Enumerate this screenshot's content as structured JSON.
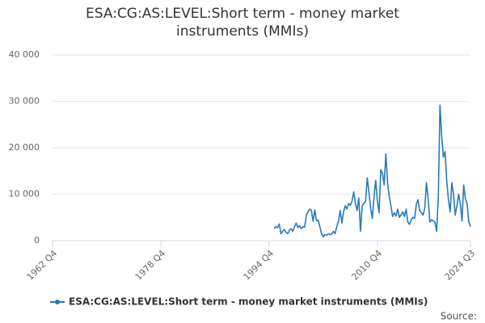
{
  "chart_data": {
    "type": "line",
    "title": "ESA:CG:AS:LEVEL:Short term - money market instruments (MMIs)",
    "source": "Source:",
    "x": [
      1995.5,
      1995.75,
      1996,
      1996.25,
      1996.5,
      1996.75,
      1997,
      1997.25,
      1997.5,
      1997.75,
      1998,
      1998.25,
      1998.5,
      1998.75,
      1999,
      1999.25,
      1999.5,
      1999.75,
      2000,
      2000.25,
      2000.5,
      2000.75,
      2001,
      2001.25,
      2001.5,
      2001.75,
      2002,
      2002.25,
      2002.5,
      2002.75,
      2003,
      2003.25,
      2003.5,
      2003.75,
      2004,
      2004.25,
      2004.5,
      2004.75,
      2005,
      2005.25,
      2005.5,
      2005.75,
      2006,
      2006.25,
      2006.5,
      2006.75,
      2007,
      2007.25,
      2007.5,
      2007.75,
      2008,
      2008.25,
      2008.5,
      2008.75,
      2009,
      2009.25,
      2009.5,
      2009.75,
      2010,
      2010.25,
      2010.5,
      2010.75,
      2011,
      2011.25,
      2011.5,
      2011.75,
      2012,
      2012.25,
      2012.5,
      2012.75,
      2013,
      2013.25,
      2013.5,
      2013.75,
      2014,
      2014.25,
      2014.5,
      2014.75,
      2015,
      2015.25,
      2015.5,
      2015.75,
      2016,
      2016.25,
      2016.5,
      2016.75,
      2017,
      2017.25,
      2017.5,
      2017.75,
      2018,
      2018.25,
      2018.5,
      2018.75,
      2019,
      2019.25,
      2019.5,
      2019.75,
      2020,
      2020.25,
      2020.5,
      2020.75,
      2021,
      2021.25,
      2021.5,
      2021.75,
      2022,
      2022.25,
      2022.5,
      2022.75,
      2023,
      2023.25,
      2023.5,
      2023.75,
      2024,
      2024.25,
      2024.5
    ],
    "series": [
      {
        "name": "ESA:CG:AS:LEVEL:Short term - money market instruments (MMIs)",
        "color": "#2a7ab8",
        "values": [
          2600,
          3000,
          2800,
          3600,
          1500,
          2000,
          2400,
          1800,
          1500,
          2200,
          2600,
          2000,
          3000,
          3800,
          2800,
          3200,
          2600,
          3000,
          2900,
          5500,
          6200,
          6800,
          6500,
          4200,
          6600,
          4300,
          4400,
          3000,
          1500,
          800,
          1300,
          1200,
          1500,
          1300,
          1400,
          2000,
          1500,
          3000,
          4200,
          6500,
          3800,
          6200,
          7500,
          6800,
          8000,
          7600,
          8500,
          10500,
          8000,
          6500,
          9200,
          2000,
          7500,
          8000,
          8500,
          13500,
          10500,
          7000,
          4800,
          9500,
          13000,
          8500,
          6000,
          15300,
          14500,
          12000,
          18700,
          12500,
          9500,
          7500,
          5200,
          6000,
          5300,
          6800,
          5000,
          5600,
          6200,
          5200,
          6800,
          4000,
          3500,
          4500,
          5000,
          4800,
          7800,
          8800,
          6500,
          6000,
          5500,
          7000,
          12500,
          9000,
          4000,
          4500,
          4300,
          4000,
          2000,
          9500,
          29200,
          22500,
          18000,
          19200,
          12800,
          8800,
          6200,
          12500,
          10000,
          5500,
          7500,
          10000,
          8000,
          4200,
          12000,
          9000,
          8000,
          4000,
          3000
        ]
      }
    ],
    "xlim": [
      1962.75,
      2024.5
    ],
    "xticks": [
      {
        "value": 1962.75,
        "label": "1962 Q4"
      },
      {
        "value": 1978.75,
        "label": "1978 Q4"
      },
      {
        "value": 1994.75,
        "label": "1994 Q4"
      },
      {
        "value": 2010.75,
        "label": "2010 Q4"
      },
      {
        "value": 2024.5,
        "label": "2024 Q3"
      }
    ],
    "ylim": [
      0,
      40000
    ],
    "yticks": [
      0,
      {
        "value": 10000,
        "label": "10 000"
      },
      {
        "value": 20000,
        "label": "20 000"
      },
      {
        "value": 30000,
        "label": "30 000"
      },
      {
        "value": 40000,
        "label": "40 000"
      }
    ],
    "grid": true
  }
}
